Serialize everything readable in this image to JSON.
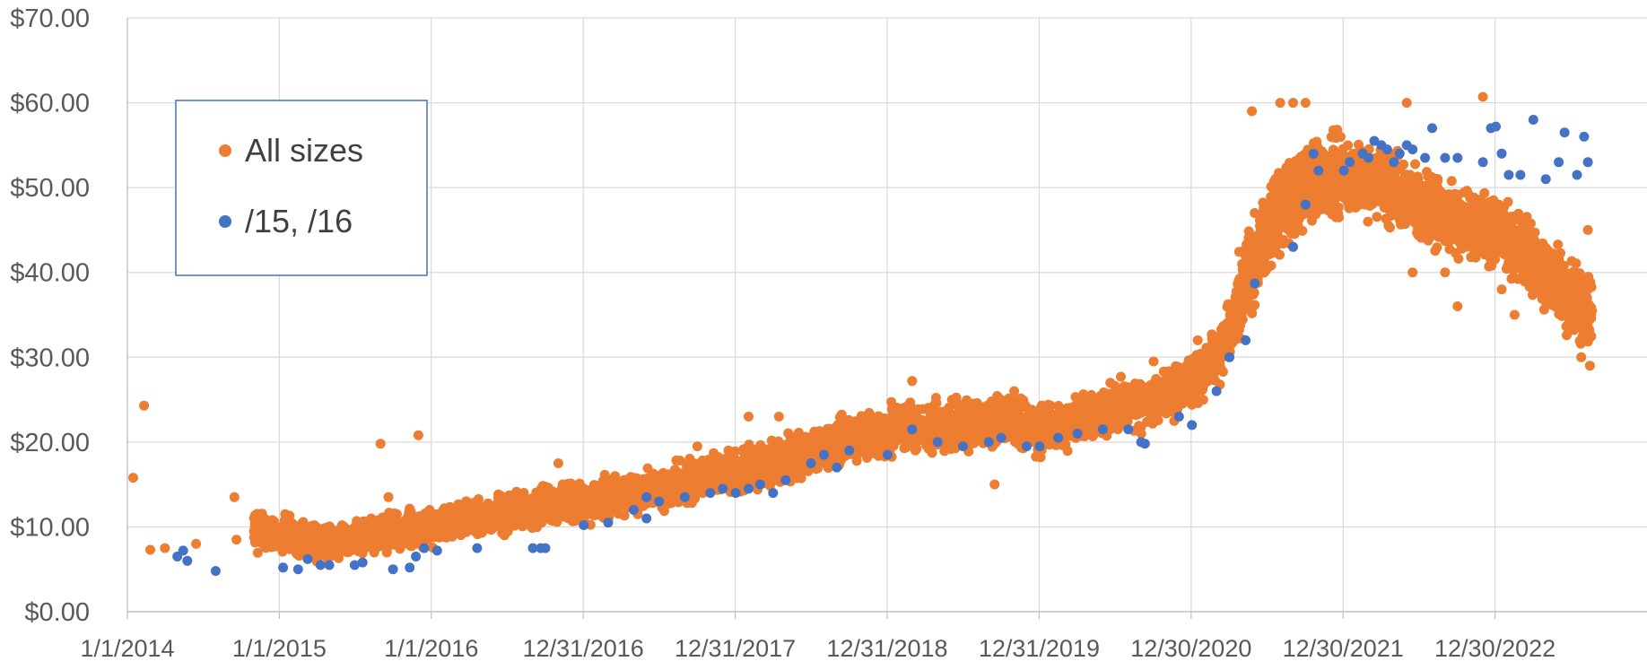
{
  "chart_data": {
    "type": "scatter",
    "title": "",
    "xlabel": "",
    "ylabel": "",
    "y_axis": {
      "min": 0,
      "max": 70,
      "step": 10,
      "tick_labels": [
        "$0.00",
        "$10.00",
        "$20.00",
        "$30.00",
        "$40.00",
        "$50.00",
        "$60.00",
        "$70.00"
      ]
    },
    "x_axis": {
      "min": "2014-01-01",
      "max": "2023-12-30",
      "tick_labels": [
        "1/1/2014",
        "1/1/2015",
        "1/1/2016",
        "12/31/2016",
        "12/31/2017",
        "12/31/2018",
        "12/31/2019",
        "12/30/2020",
        "12/30/2021",
        "12/30/2022"
      ]
    },
    "grid": true,
    "legend_position": "top-left",
    "series": [
      {
        "name": "All sizes",
        "color": "#ED7D31",
        "trend": [
          [
            "2014-01-15",
            15.8
          ],
          [
            "2014-02-10",
            24.3
          ],
          [
            "2014-02-25",
            7.3
          ],
          [
            "2014-04-01",
            7.5
          ],
          [
            "2014-06-15",
            8.0
          ],
          [
            "2014-09-20",
            8.5
          ],
          [
            "2014-11-01",
            9.5
          ],
          [
            "2015-01-01",
            9.0
          ],
          [
            "2015-04-01",
            8.2
          ],
          [
            "2015-07-01",
            8.5
          ],
          [
            "2015-10-01",
            9.5
          ],
          [
            "2016-01-01",
            10.0
          ],
          [
            "2016-04-01",
            10.8
          ],
          [
            "2016-07-01",
            11.5
          ],
          [
            "2016-10-01",
            12.5
          ],
          [
            "2017-01-01",
            13.0
          ],
          [
            "2017-04-01",
            13.8
          ],
          [
            "2017-07-01",
            14.3
          ],
          [
            "2017-10-01",
            15.5
          ],
          [
            "2018-01-01",
            16.5
          ],
          [
            "2018-04-01",
            17.5
          ],
          [
            "2018-07-01",
            18.8
          ],
          [
            "2018-10-01",
            20.5
          ],
          [
            "2019-01-01",
            21.0
          ],
          [
            "2019-04-01",
            21.8
          ],
          [
            "2019-07-01",
            22.0
          ],
          [
            "2019-10-01",
            22.5
          ],
          [
            "2020-01-01",
            21.5
          ],
          [
            "2020-04-01",
            22.5
          ],
          [
            "2020-07-01",
            24.0
          ],
          [
            "2020-10-01",
            25.0
          ],
          [
            "2021-01-01",
            27.0
          ],
          [
            "2021-03-01",
            30.0
          ],
          [
            "2021-04-15",
            35.0
          ],
          [
            "2021-06-01",
            41.0
          ],
          [
            "2021-07-15",
            46.0
          ],
          [
            "2021-09-01",
            49.0
          ],
          [
            "2021-11-01",
            51.0
          ],
          [
            "2022-01-01",
            51.0
          ],
          [
            "2022-04-01",
            50.5
          ],
          [
            "2022-07-01",
            48.0
          ],
          [
            "2022-10-01",
            46.0
          ],
          [
            "2023-01-01",
            45.0
          ],
          [
            "2023-03-01",
            43.0
          ],
          [
            "2023-05-01",
            40.0
          ],
          [
            "2023-07-01",
            37.0
          ],
          [
            "2023-08-15",
            35.5
          ]
        ],
        "outliers": [
          [
            "2014-09-15",
            13.5
          ],
          [
            "2015-01-15",
            11.5
          ],
          [
            "2015-09-01",
            19.8
          ],
          [
            "2015-12-01",
            20.8
          ],
          [
            "2015-09-20",
            13.5
          ],
          [
            "2016-11-01",
            17.5
          ],
          [
            "2017-10-01",
            19.5
          ],
          [
            "2018-02-01",
            23.0
          ],
          [
            "2018-04-15",
            23.0
          ],
          [
            "2019-03-01",
            27.2
          ],
          [
            "2019-09-15",
            15.0
          ],
          [
            "2019-11-01",
            26.0
          ],
          [
            "2020-10-01",
            29.5
          ],
          [
            "2021-01-15",
            32.0
          ],
          [
            "2021-05-25",
            59.0
          ],
          [
            "2021-08-01",
            60.0
          ],
          [
            "2021-09-01",
            60.0
          ],
          [
            "2021-10-01",
            60.0
          ],
          [
            "2022-06-01",
            60.0
          ],
          [
            "2022-12-01",
            60.7
          ],
          [
            "2022-09-01",
            40.0
          ],
          [
            "2022-06-15",
            40.0
          ],
          [
            "2022-10-01",
            36.0
          ],
          [
            "2023-01-15",
            38.0
          ],
          [
            "2023-02-15",
            35.0
          ],
          [
            "2023-07-25",
            30.0
          ],
          [
            "2023-08-15",
            29.0
          ],
          [
            "2023-08-10",
            45.0
          ]
        ]
      },
      {
        "name": "/15, /16",
        "color": "#4472C4",
        "points": [
          [
            "2014-05-01",
            6.5
          ],
          [
            "2014-05-15",
            7.2
          ],
          [
            "2014-05-25",
            6.0
          ],
          [
            "2014-08-01",
            4.8
          ],
          [
            "2015-01-10",
            5.2
          ],
          [
            "2015-02-15",
            5.0
          ],
          [
            "2015-03-10",
            6.2
          ],
          [
            "2015-04-10",
            5.5
          ],
          [
            "2015-05-01",
            5.5
          ],
          [
            "2015-07-01",
            5.5
          ],
          [
            "2015-07-20",
            5.8
          ],
          [
            "2015-10-01",
            5.0
          ],
          [
            "2015-11-10",
            5.2
          ],
          [
            "2015-11-25",
            6.5
          ],
          [
            "2015-12-15",
            7.5
          ],
          [
            "2016-01-15",
            7.2
          ],
          [
            "2016-04-20",
            7.5
          ],
          [
            "2016-09-01",
            7.5
          ],
          [
            "2016-09-20",
            7.5
          ],
          [
            "2016-10-01",
            7.5
          ],
          [
            "2017-01-01",
            10.2
          ],
          [
            "2017-03-01",
            10.5
          ],
          [
            "2017-06-01",
            11.0
          ],
          [
            "2017-05-01",
            12.0
          ],
          [
            "2017-06-01",
            13.5
          ],
          [
            "2017-07-01",
            13.0
          ],
          [
            "2017-09-01",
            13.5
          ],
          [
            "2017-11-01",
            14.0
          ],
          [
            "2017-12-01",
            14.5
          ],
          [
            "2018-01-01",
            14.0
          ],
          [
            "2018-02-01",
            14.5
          ],
          [
            "2018-03-01",
            15.0
          ],
          [
            "2018-04-01",
            14.0
          ],
          [
            "2018-05-01",
            15.5
          ],
          [
            "2018-07-01",
            17.5
          ],
          [
            "2018-08-01",
            18.5
          ],
          [
            "2018-09-01",
            17.0
          ],
          [
            "2018-10-01",
            19.0
          ],
          [
            "2019-01-01",
            18.5
          ],
          [
            "2019-03-01",
            21.5
          ],
          [
            "2019-05-01",
            20.0
          ],
          [
            "2019-07-01",
            19.5
          ],
          [
            "2019-09-01",
            20.0
          ],
          [
            "2019-10-01",
            20.5
          ],
          [
            "2019-12-01",
            19.5
          ],
          [
            "2020-01-01",
            19.5
          ],
          [
            "2020-02-15",
            20.5
          ],
          [
            "2020-04-01",
            21.0
          ],
          [
            "2020-06-01",
            21.5
          ],
          [
            "2020-08-01",
            21.5
          ],
          [
            "2020-09-01",
            20.0
          ],
          [
            "2020-09-10",
            19.8
          ],
          [
            "2020-12-01",
            23.0
          ],
          [
            "2021-01-01",
            22.0
          ],
          [
            "2021-03-01",
            26.0
          ],
          [
            "2021-04-01",
            30.0
          ],
          [
            "2021-05-10",
            32.0
          ],
          [
            "2021-06-01",
            38.7
          ],
          [
            "2021-09-01",
            43.0
          ],
          [
            "2021-10-01",
            48.0
          ],
          [
            "2021-10-20",
            54.0
          ],
          [
            "2021-11-01",
            52.0
          ],
          [
            "2022-01-01",
            52.0
          ],
          [
            "2022-01-15",
            53.0
          ],
          [
            "2022-02-15",
            54.0
          ],
          [
            "2022-03-01",
            53.5
          ],
          [
            "2022-03-15",
            55.5
          ],
          [
            "2022-04-01",
            55.0
          ],
          [
            "2022-04-15",
            54.5
          ],
          [
            "2022-05-01",
            53.0
          ],
          [
            "2022-05-15",
            54.0
          ],
          [
            "2022-06-01",
            55.0
          ],
          [
            "2022-06-15",
            54.5
          ],
          [
            "2022-07-15",
            53.5
          ],
          [
            "2022-08-01",
            57.0
          ],
          [
            "2022-09-01",
            53.5
          ],
          [
            "2022-10-01",
            53.5
          ],
          [
            "2022-12-01",
            53.0
          ],
          [
            "2022-12-20",
            57.0
          ],
          [
            "2023-01-01",
            57.2
          ],
          [
            "2023-01-15",
            54.0
          ],
          [
            "2023-02-01",
            51.5
          ],
          [
            "2023-03-01",
            51.5
          ],
          [
            "2023-04-01",
            58.0
          ],
          [
            "2023-05-01",
            51.0
          ],
          [
            "2023-06-01",
            53.0
          ],
          [
            "2023-06-15",
            56.5
          ],
          [
            "2023-07-15",
            51.5
          ],
          [
            "2023-08-01",
            56.0
          ],
          [
            "2023-08-10",
            53.0
          ]
        ]
      }
    ]
  }
}
